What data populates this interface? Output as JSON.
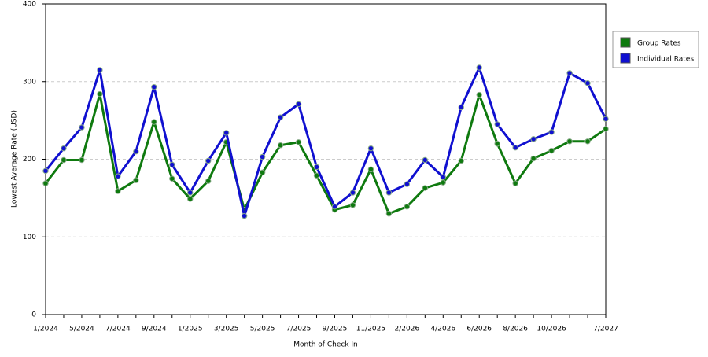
{
  "chart_data": {
    "type": "line",
    "x_label": "Month of Check In",
    "y_label": "Lowest Average Rate (USD)",
    "categories": [
      "1/2024",
      null,
      "5/2024",
      null,
      "7/2024",
      null,
      "9/2024",
      null,
      "1/2025",
      null,
      "3/2025",
      null,
      "5/2025",
      null,
      "7/2025",
      null,
      "9/2025",
      null,
      "11/2025",
      null,
      "2/2026",
      null,
      "4/2026",
      null,
      "6/2026",
      null,
      "8/2026",
      null,
      "10/2026",
      null,
      null,
      "7/2027"
    ],
    "series": [
      {
        "name": "Group Rates",
        "color": "#0f7a0f",
        "values": [
          169,
          199,
          199,
          284,
          159,
          173,
          248,
          175,
          149,
          172,
          222,
          135,
          183,
          218,
          222,
          179,
          135,
          141,
          187,
          130,
          139,
          163,
          170,
          198,
          283,
          220,
          169,
          201,
          211,
          223,
          223,
          239
        ]
      },
      {
        "name": "Individual Rates",
        "color": "#1010d0",
        "values": [
          185,
          214,
          241,
          315,
          178,
          210,
          293,
          193,
          157,
          198,
          234,
          127,
          203,
          254,
          271,
          190,
          139,
          157,
          214,
          157,
          168,
          199,
          177,
          267,
          318,
          245,
          215,
          226,
          235,
          311,
          298,
          252
        ]
      }
    ],
    "ylim": [
      0,
      400
    ],
    "yticks": [
      0,
      100,
      200,
      300,
      400
    ],
    "grid": true,
    "legend": "right"
  }
}
